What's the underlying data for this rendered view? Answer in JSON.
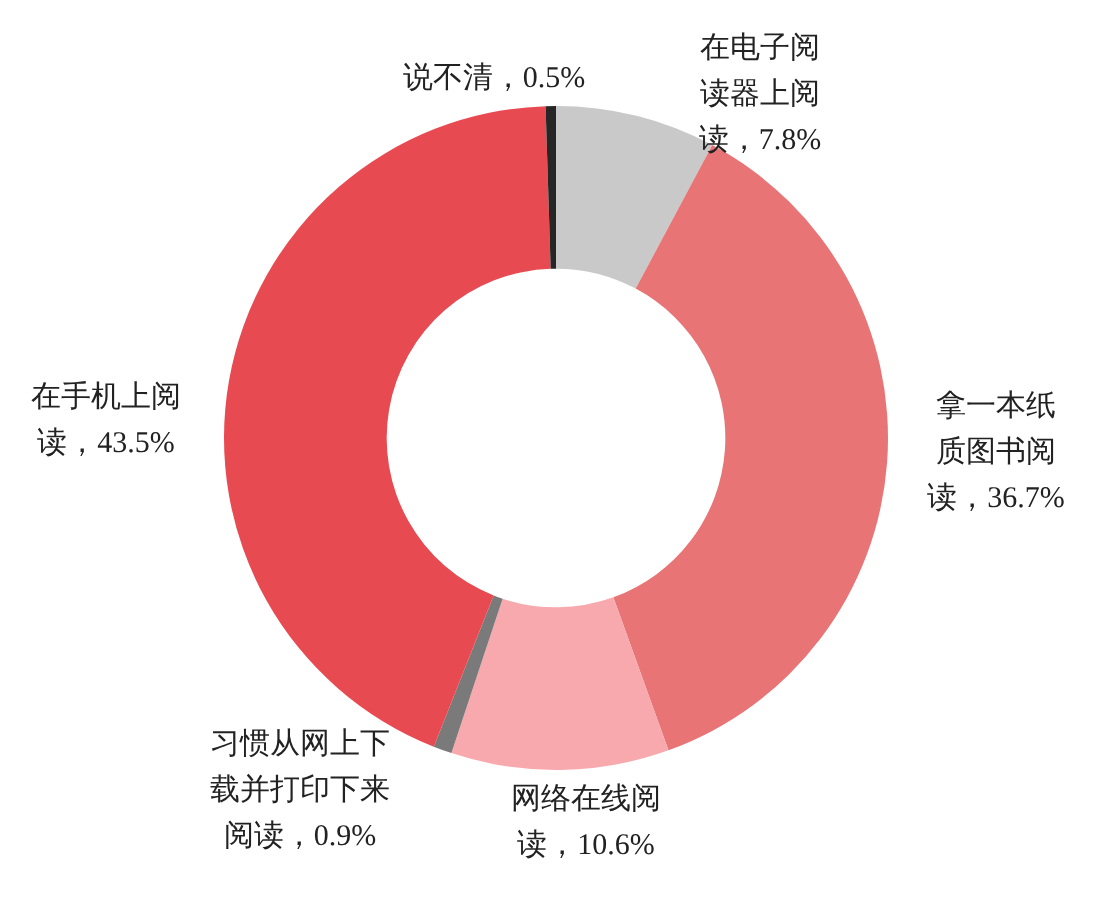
{
  "chart_data": {
    "type": "donut",
    "categories": [
      "在电子阅读器上阅读",
      "拿一本纸质图书阅读",
      "网络在线阅读",
      "习惯从网上下载并打印下来阅读",
      "在手机上阅读",
      "说不清"
    ],
    "values": [
      7.8,
      36.7,
      10.6,
      0.9,
      43.5,
      0.5
    ],
    "value_labels": [
      "7.8%",
      "36.7%",
      "10.6%",
      "0.9%",
      "43.5%",
      "0.5%"
    ],
    "colors": [
      "#c9c9c9",
      "#e87476",
      "#f8a9ae",
      "#7a7a7a",
      "#e84a52",
      "#262626"
    ]
  }
}
